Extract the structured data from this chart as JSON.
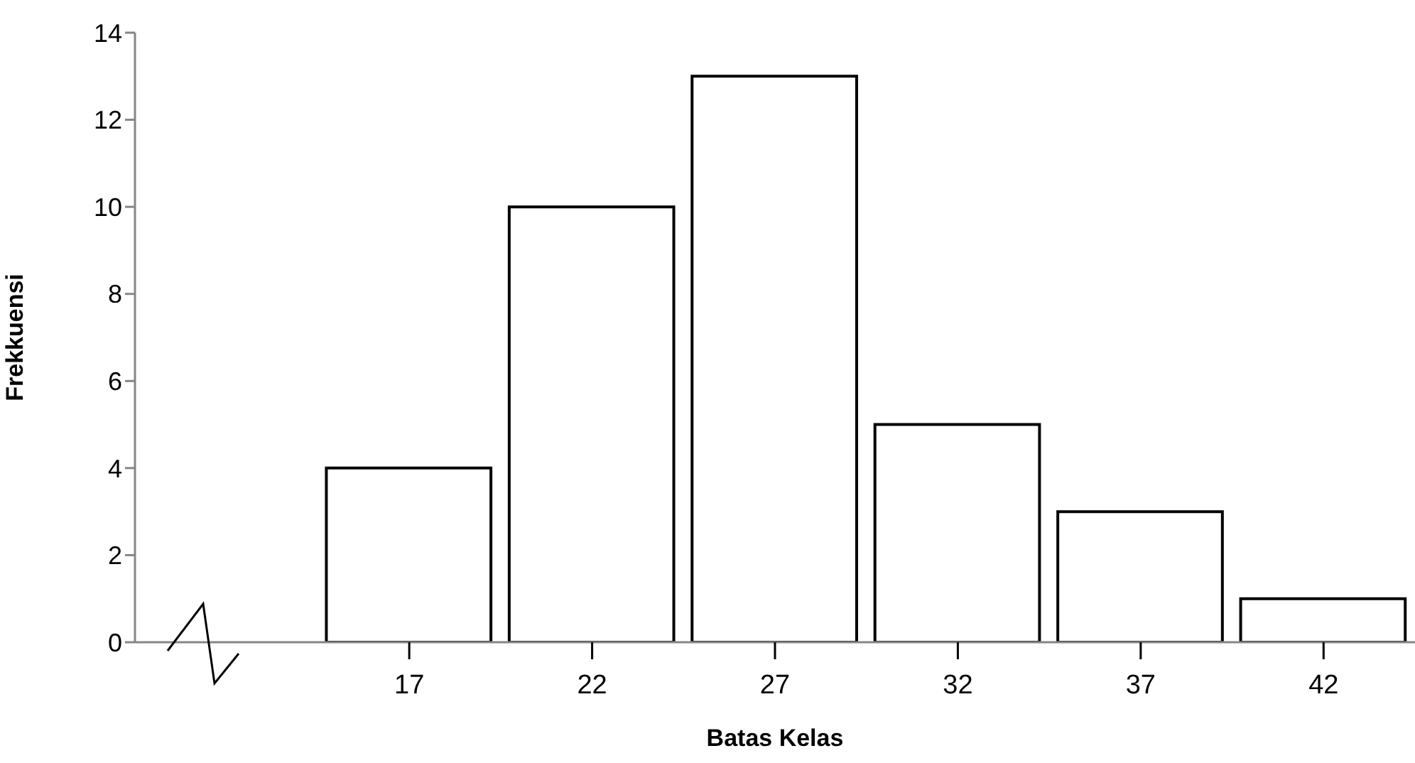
{
  "chart_data": {
    "type": "histogram",
    "xlabel": "Batas Kelas",
    "ylabel": "Frekkuensi",
    "bins": [
      14.5,
      19.5,
      24.5,
      29.5,
      34.5,
      39.5,
      44.5
    ],
    "values": [
      4,
      10,
      13,
      5,
      3,
      1
    ],
    "color": "#ffffff",
    "xlim": [
      9.5,
      44.5
    ],
    "xticks": [
      17,
      22,
      27,
      32,
      37,
      42
    ],
    "ylim": [
      0,
      14
    ],
    "yticks": [
      0,
      2,
      4,
      6,
      8,
      10,
      12,
      14
    ]
  }
}
